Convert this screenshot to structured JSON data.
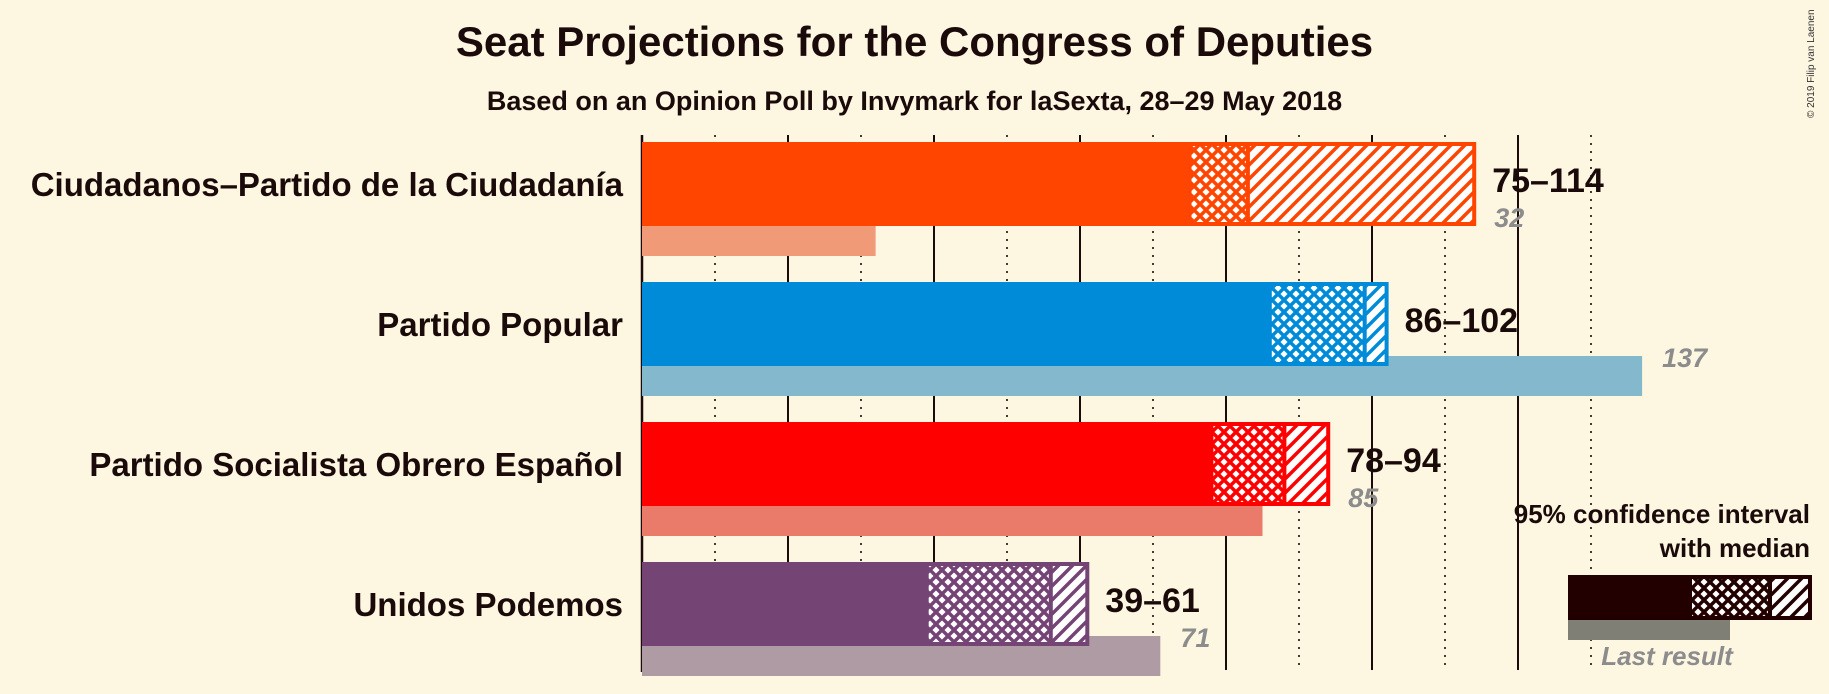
{
  "title": "Seat Projections for the Congress of Deputies",
  "subtitle": "Based on an Opinion Poll by Invymark for laSexta, 28–29 May 2018",
  "copyright": "© 2019 Filip van Laenen",
  "legend": {
    "ci_line1": "95% confidence interval",
    "ci_line2": "with median",
    "last_result": "Last result"
  },
  "chart_data": {
    "type": "bar",
    "orientation": "horizontal",
    "x_range": [
      0,
      140
    ],
    "grid": "solid every 20 seats, dotted every 10 seats",
    "series": [
      {
        "party": "Ciudadanos–Partido de la Ciudadanía",
        "low": 75,
        "median": 83,
        "high": 114,
        "ci50_low": 75,
        "ci50_high": 83,
        "range_label": "75–114",
        "last_result": 32,
        "last_label": "32",
        "color": "#ff4500",
        "last_color": "#f09a78"
      },
      {
        "party": "Partido Popular",
        "low": 86,
        "median": 99,
        "high": 102,
        "ci50_low": 86,
        "ci50_high": 99,
        "range_label": "86–102",
        "last_result": 137,
        "last_label": "137",
        "color": "#008bd8",
        "last_color": "#84b8cd"
      },
      {
        "party": "Partido Socialista Obrero Español",
        "low": 78,
        "median": 88,
        "high": 94,
        "ci50_low": 78,
        "ci50_high": 88,
        "range_label": "78–94",
        "last_result": 85,
        "last_label": "85",
        "color": "#ff0000",
        "last_color": "#ea7a6a"
      },
      {
        "party": "Unidos Podemos",
        "low": 39,
        "median": 56,
        "high": 61,
        "ci50_low": 39,
        "ci50_high": 56,
        "range_label": "39–61",
        "last_result": 71,
        "last_label": "71",
        "color": "#744474",
        "last_color": "#af9ba3"
      }
    ]
  }
}
